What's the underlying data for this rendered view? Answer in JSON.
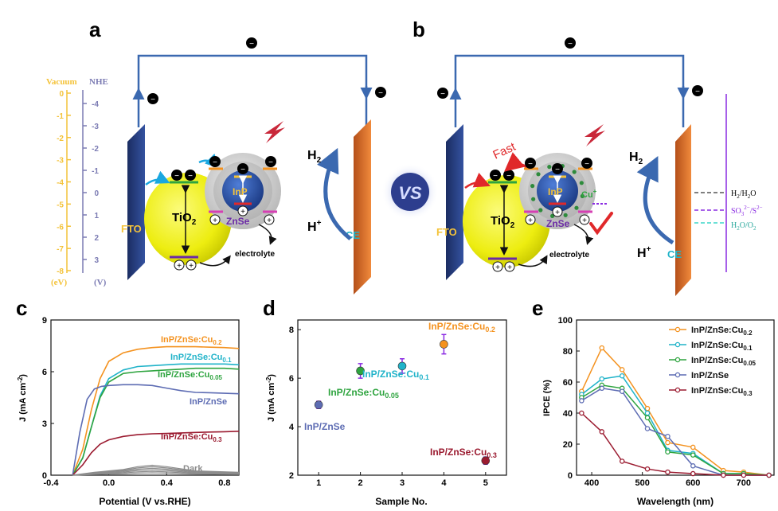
{
  "panel_letters": {
    "a": "a",
    "b": "b",
    "c": "c",
    "d": "d",
    "e": "e"
  },
  "colors": {
    "cu02": "#f4921f",
    "cu01": "#20b3c9",
    "cu005": "#2ea43f",
    "pure": "#5d6cb3",
    "cu03": "#9b1b30",
    "dark": "#8c8c8c",
    "tio2": "#f3f31c",
    "fto": "#263c7a",
    "ce": "#e8772d",
    "wire": "#3b69b0",
    "yellow_scale": "#f4c33a",
    "nhe_scale": "#7b7bb3",
    "red": "#e0282a",
    "purple": "#8a2be2"
  },
  "scheme": {
    "vacuum_label": "Vacuum",
    "nhe_label": "NHE",
    "ev_unit": "(eV)",
    "v_unit": "(V)",
    "vacuum_ticks": [
      "0",
      "-1",
      "-2",
      "-3",
      "-4",
      "-5",
      "-6",
      "-7",
      "-8"
    ],
    "nhe_ticks": [
      "-4",
      "-3",
      "-2",
      "-1",
      "0",
      "1",
      "2",
      "3"
    ],
    "electron": "e",
    "hole": "+",
    "tio2": "TiO",
    "tio2_sub": "2",
    "inp": "InP",
    "znse": "ZnSe",
    "fto": "FTO",
    "ce": "CE",
    "h2": "H",
    "h2_sub": "2",
    "hplus": "H",
    "hplus_sup": "+",
    "electrolyte": "electrolyte",
    "vs": "VS",
    "fast": "Fast",
    "cu_ion": "Cu",
    "cu_sup": "+",
    "redox": [
      {
        "a": "H",
        "s1": "2",
        "b": "/H",
        "s2": "2",
        "c": "O",
        "color": "#555555"
      },
      {
        "a": "SO",
        "s1": "3",
        "sup1": "2−",
        "b": "/S",
        "sup2": "2−",
        "color": "#8a2be2"
      },
      {
        "a": "H",
        "s1": "2",
        "b": "O/O",
        "s2": "2",
        "color": "#3ad6c8"
      }
    ]
  },
  "chart_data": [
    {
      "type": "line",
      "panel": "c",
      "xlabel": "Potential (V vs.RHE)",
      "ylabel": "J (mA cm",
      "ylabel_sup": "-2",
      "ylabel_tail": ")",
      "xlim": [
        -0.4,
        0.9
      ],
      "ylim": [
        0,
        9
      ],
      "x_ticks": [
        "-0.4",
        "0.0",
        "0.4",
        "0.8"
      ],
      "y_ticks": [
        "0",
        "3",
        "6",
        "9"
      ],
      "series": [
        {
          "name": "InP/ZnSe:Cu",
          "sub": "0.2",
          "color": "#f4921f",
          "x": [
            -0.25,
            -0.18,
            -0.12,
            -0.06,
            0.0,
            0.1,
            0.2,
            0.3,
            0.4,
            0.5,
            0.6,
            0.7,
            0.8,
            0.9
          ],
          "y": [
            0,
            1.5,
            3.8,
            5.6,
            6.6,
            7.1,
            7.3,
            7.4,
            7.45,
            7.45,
            7.45,
            7.42,
            7.4,
            7.35
          ]
        },
        {
          "name": "InP/ZnSe:Cu",
          "sub": "0.1",
          "color": "#20b3c9",
          "x": [
            -0.25,
            -0.18,
            -0.12,
            -0.06,
            0.0,
            0.1,
            0.2,
            0.3,
            0.4,
            0.5,
            0.6,
            0.7,
            0.8,
            0.9
          ],
          "y": [
            0,
            1.0,
            2.8,
            4.6,
            5.6,
            6.1,
            6.3,
            6.35,
            6.4,
            6.45,
            6.45,
            6.45,
            6.45,
            6.4
          ]
        },
        {
          "name": "InP/ZnSe:Cu",
          "sub": "0.05",
          "color": "#2ea43f",
          "x": [
            -0.25,
            -0.18,
            -0.12,
            -0.06,
            0.0,
            0.1,
            0.2,
            0.3,
            0.4,
            0.5,
            0.6,
            0.7,
            0.8,
            0.9
          ],
          "y": [
            0,
            1.0,
            2.8,
            4.5,
            5.4,
            5.9,
            6.0,
            6.05,
            6.1,
            6.15,
            6.2,
            6.2,
            6.2,
            6.15
          ]
        },
        {
          "name": "InP/ZnSe",
          "sub": "",
          "color": "#5d6cb3",
          "x": [
            -0.25,
            -0.2,
            -0.15,
            -0.1,
            -0.05,
            0.0,
            0.1,
            0.2,
            0.3,
            0.4,
            0.5,
            0.6,
            0.7,
            0.8,
            0.9
          ],
          "y": [
            0,
            2.5,
            4.4,
            5.0,
            5.15,
            5.2,
            5.25,
            5.25,
            5.2,
            5.05,
            4.9,
            4.8,
            4.78,
            4.75,
            4.72
          ]
        },
        {
          "name": "InP/ZnSe:Cu",
          "sub": "0.3",
          "color": "#9b1b30",
          "x": [
            -0.25,
            -0.18,
            -0.12,
            -0.06,
            0.0,
            0.1,
            0.2,
            0.3,
            0.4,
            0.5,
            0.6,
            0.7,
            0.8,
            0.9
          ],
          "y": [
            0,
            0.6,
            1.3,
            1.8,
            2.05,
            2.25,
            2.35,
            2.4,
            2.42,
            2.45,
            2.48,
            2.5,
            2.52,
            2.55
          ]
        },
        {
          "name": "Dark",
          "sub": "",
          "color": "#8c8c8c",
          "x": [
            -0.25,
            -0.1,
            0.0,
            0.1,
            0.2,
            0.3,
            0.4,
            0.6,
            0.9
          ],
          "y": [
            0,
            0.1,
            0.15,
            0.2,
            0.3,
            0.35,
            0.3,
            0.15,
            0.1
          ]
        }
      ]
    },
    {
      "type": "scatter",
      "panel": "d",
      "xlabel": "Sample No.",
      "ylabel": "J (mA cm",
      "ylabel_sup": "-2",
      "ylabel_tail": ")",
      "xlim": [
        0.5,
        5.5
      ],
      "ylim": [
        2,
        8.4
      ],
      "x_ticks": [
        "1",
        "2",
        "3",
        "4",
        "5"
      ],
      "y_ticks": [
        "2",
        "4",
        "6",
        "8"
      ],
      "points": [
        {
          "x": 1,
          "y": 4.9,
          "err": 0.15,
          "color": "#5d6cb3",
          "label": "InP/ZnSe",
          "sub": ""
        },
        {
          "x": 2,
          "y": 6.3,
          "err": 0.3,
          "color": "#2ea43f",
          "label": "InP/ZnSe:Cu",
          "sub": "0.05"
        },
        {
          "x": 3,
          "y": 6.5,
          "err": 0.3,
          "color": "#20b3c9",
          "label": "InP/ZnSe:Cu",
          "sub": "0.1"
        },
        {
          "x": 4,
          "y": 7.4,
          "err": 0.4,
          "color": "#f4921f",
          "label": "InP/ZnSe:Cu",
          "sub": "0.2"
        },
        {
          "x": 5,
          "y": 2.6,
          "err": 0.15,
          "color": "#9b1b30",
          "label": "InP/ZnSe:Cu",
          "sub": "0.3"
        }
      ]
    },
    {
      "type": "line",
      "panel": "e",
      "xlabel": "Wavelength (nm)",
      "ylabel": "IPCE (%)",
      "xlim": [
        370,
        760
      ],
      "ylim": [
        0,
        100
      ],
      "x_ticks": [
        "400",
        "500",
        "600",
        "700"
      ],
      "y_ticks": [
        "0",
        "20",
        "40",
        "60",
        "80",
        "100"
      ],
      "series": [
        {
          "name": "InP/ZnSe:Cu",
          "sub": "0.2",
          "color": "#f4921f",
          "x": [
            380,
            420,
            460,
            510,
            550,
            600,
            660,
            700,
            750
          ],
          "y": [
            54,
            82,
            68,
            43,
            21,
            18,
            3,
            2,
            0
          ]
        },
        {
          "name": "InP/ZnSe:Cu",
          "sub": "0.1",
          "color": "#20b3c9",
          "x": [
            380,
            420,
            460,
            510,
            550,
            600,
            660,
            700,
            750
          ],
          "y": [
            52,
            62,
            64,
            40,
            16,
            14,
            1,
            1,
            0
          ]
        },
        {
          "name": "InP/ZnSe:Cu",
          "sub": "0.05",
          "color": "#2ea43f",
          "x": [
            380,
            420,
            460,
            510,
            550,
            600,
            660,
            700,
            750
          ],
          "y": [
            50,
            58,
            56,
            37,
            15,
            13,
            1,
            1,
            0
          ]
        },
        {
          "name": "InP/ZnSe",
          "sub": "",
          "color": "#5d6cb3",
          "x": [
            380,
            420,
            460,
            510,
            550,
            600,
            660,
            700,
            750
          ],
          "y": [
            48,
            56,
            54,
            30,
            25,
            6,
            0,
            0,
            0
          ]
        },
        {
          "name": "InP/ZnSe:Cu",
          "sub": "0.3",
          "color": "#9b1b30",
          "x": [
            380,
            420,
            460,
            510,
            550,
            600,
            660,
            700,
            750
          ],
          "y": [
            40,
            28,
            9,
            4,
            2,
            1,
            0,
            0,
            0
          ]
        }
      ]
    }
  ]
}
